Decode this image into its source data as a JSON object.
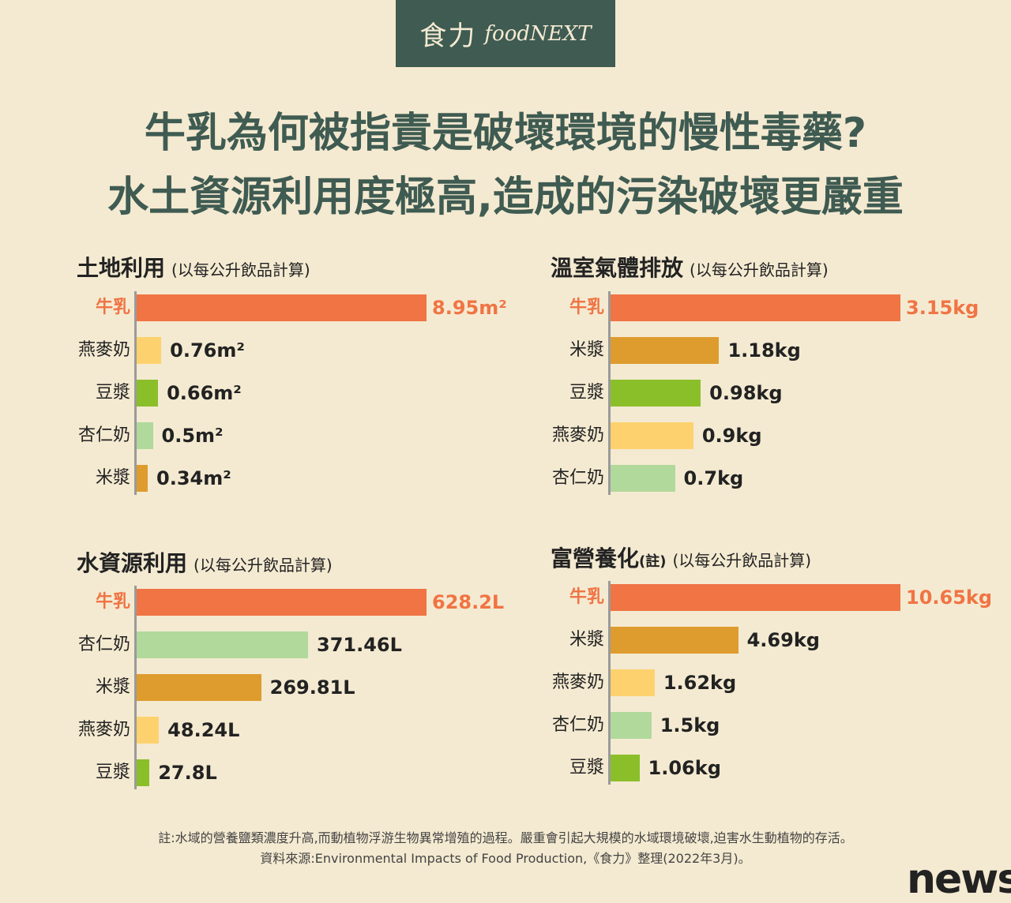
{
  "logo": {
    "cn": "食力",
    "en": "foodNEXT"
  },
  "title": {
    "line1": "牛乳為何被指責是破壞環境的慢性毒藥?",
    "line2": "水土資源利用度極高,造成的污染破壞更嚴重"
  },
  "colors": {
    "background": "#f4ead1",
    "brand": "#3f5b52",
    "牛乳": "#f07444",
    "燕麥奶": "#fdd26e",
    "豆漿": "#8bbf2a",
    "杏仁奶": "#b1d99c",
    "米漿": "#de9c2e"
  },
  "chart_data": [
    {
      "type": "bar",
      "orientation": "horizontal",
      "title": "土地利用",
      "subtitle": "(以每公升飲品計算)",
      "unit": "m²",
      "categories": [
        "牛乳",
        "燕麥奶",
        "豆漿",
        "杏仁奶",
        "米漿"
      ],
      "values": [
        8.95,
        0.76,
        0.66,
        0.5,
        0.34
      ],
      "labels": [
        "8.95m²",
        "0.76m²",
        "0.66m²",
        "0.5m²",
        "0.34m²"
      ]
    },
    {
      "type": "bar",
      "orientation": "horizontal",
      "title": "溫室氣體排放",
      "subtitle": "(以每公升飲品計算)",
      "unit": "kg",
      "categories": [
        "牛乳",
        "米漿",
        "豆漿",
        "燕麥奶",
        "杏仁奶"
      ],
      "values": [
        3.15,
        1.18,
        0.98,
        0.9,
        0.7
      ],
      "labels": [
        "3.15kg",
        "1.18kg",
        "0.98kg",
        "0.9kg",
        "0.7kg"
      ]
    },
    {
      "type": "bar",
      "orientation": "horizontal",
      "title": "水資源利用",
      "subtitle": "(以每公升飲品計算)",
      "unit": "L",
      "categories": [
        "牛乳",
        "杏仁奶",
        "米漿",
        "燕麥奶",
        "豆漿"
      ],
      "values": [
        628.2,
        371.46,
        269.81,
        48.24,
        27.8
      ],
      "labels": [
        "628.2L",
        "371.46L",
        "269.81L",
        "48.24L",
        "27.8L"
      ]
    },
    {
      "type": "bar",
      "orientation": "horizontal",
      "title": "富營養化",
      "title_note": "(註)",
      "subtitle": "(以每公升飲品計算)",
      "unit": "kg",
      "categories": [
        "牛乳",
        "米漿",
        "燕麥奶",
        "杏仁奶",
        "豆漿"
      ],
      "values": [
        10.65,
        4.69,
        1.62,
        1.5,
        1.06
      ],
      "labels": [
        "10.65kg",
        "4.69kg",
        "1.62kg",
        "1.5kg",
        "1.06kg"
      ]
    }
  ],
  "footer": {
    "note": "註:水域的營養鹽類濃度升高,而動植物浮游生物異常增殖的過程。嚴重會引起大規模的水域環境破壞,迫害水生動植物的存活。",
    "source": "資料來源:Environmental Impacts of Food Production,《食力》整理(2022年3月)。"
  },
  "watermark": "news"
}
